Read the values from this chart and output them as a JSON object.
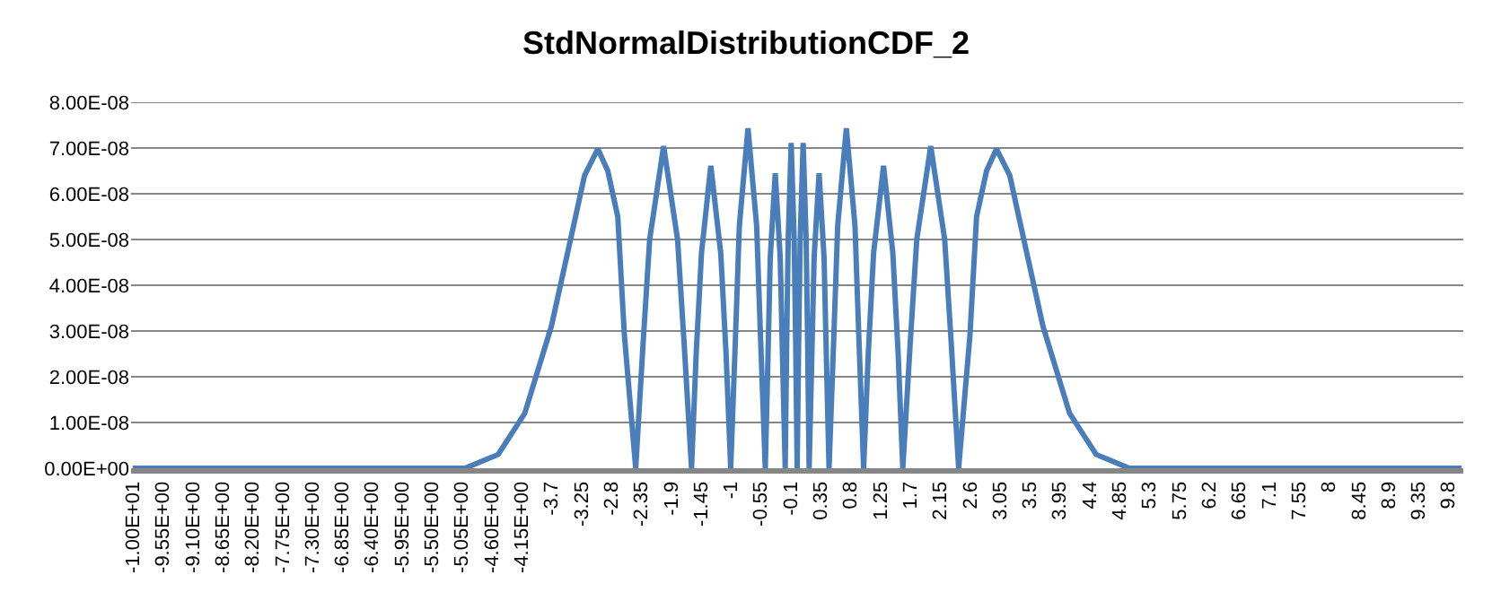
{
  "chart_data": {
    "type": "line",
    "title": "StdNormalDistributionCDF_2",
    "series": [
      {
        "color": "#4a7ebb",
        "x": [
          -10,
          -5.3,
          -5.0,
          -4.5,
          -4.1,
          -3.7,
          -3.35,
          -3.2,
          -3.0,
          -2.85,
          -2.7,
          -2.6,
          -2.43,
          -2.32,
          -2.22,
          -2.01,
          -1.8,
          -1.7,
          -1.59,
          -1.52,
          -1.44,
          -1.3,
          -1.15,
          -1.07,
          -1.0,
          -0.93,
          -0.87,
          -0.74,
          -0.61,
          -0.55,
          -0.48,
          -0.44,
          -0.405,
          -0.33,
          -0.255,
          -0.22,
          -0.18,
          -0.158,
          -0.135,
          -0.09,
          -0.045,
          -0.022,
          0,
          0.022,
          0.045,
          0.09,
          0.135,
          0.158,
          0.18,
          0.22,
          0.255,
          0.33,
          0.405,
          0.44,
          0.48,
          0.55,
          0.61,
          0.74,
          0.87,
          0.93,
          1.0,
          1.07,
          1.15,
          1.3,
          1.44,
          1.52,
          1.59,
          1.7,
          1.8,
          2.01,
          2.22,
          2.32,
          2.43,
          2.6,
          2.7,
          2.85,
          3.0,
          3.2,
          3.35,
          3.7,
          4.1,
          4.5,
          5.0,
          5.3,
          10
        ],
        "values": [
          0,
          0,
          0,
          3e-09,
          1.2e-08,
          3.1e-08,
          5.4e-08,
          6.4e-08,
          6.98e-08,
          6.5e-08,
          5.5e-08,
          2.9e-08,
          0,
          2.7e-08,
          5e-08,
          7.04e-08,
          5e-08,
          2.7e-08,
          0,
          2.5e-08,
          4.7e-08,
          6.61e-08,
          4.7e-08,
          2.5e-08,
          0,
          2.8e-08,
          5.3e-08,
          7.43e-08,
          5.3e-08,
          2.8e-08,
          0,
          2.4e-08,
          4.6e-08,
          6.45e-08,
          4.6e-08,
          2.4e-08,
          0,
          2.7e-08,
          5e-08,
          7.11e-08,
          5e-08,
          2.7e-08,
          0,
          2.7e-08,
          5e-08,
          7.11e-08,
          5e-08,
          2.7e-08,
          0,
          2.4e-08,
          4.6e-08,
          6.45e-08,
          4.6e-08,
          2.4e-08,
          0,
          2.8e-08,
          5.3e-08,
          7.43e-08,
          5.3e-08,
          2.8e-08,
          0,
          2.5e-08,
          4.7e-08,
          6.61e-08,
          4.7e-08,
          2.5e-08,
          0,
          2.7e-08,
          5e-08,
          7.04e-08,
          5e-08,
          2.7e-08,
          0,
          2.9e-08,
          5.5e-08,
          6.5e-08,
          6.98e-08,
          6.4e-08,
          5.4e-08,
          3.1e-08,
          1.2e-08,
          3e-09,
          0,
          0,
          0
        ]
      }
    ],
    "xlim": [
      -10.025,
      10.025
    ],
    "xticks": [
      {
        "value": -10,
        "label": "-1.00E+01"
      },
      {
        "value": -9.55,
        "label": "-9.55E+00"
      },
      {
        "value": -9.1,
        "label": "-9.10E+00"
      },
      {
        "value": -8.65,
        "label": "-8.65E+00"
      },
      {
        "value": -8.2,
        "label": "-8.20E+00"
      },
      {
        "value": -7.75,
        "label": "-7.75E+00"
      },
      {
        "value": -7.3,
        "label": "-7.30E+00"
      },
      {
        "value": -6.85,
        "label": "-6.85E+00"
      },
      {
        "value": -6.4,
        "label": "-6.40E+00"
      },
      {
        "value": -5.95,
        "label": "-5.95E+00"
      },
      {
        "value": -5.5,
        "label": "-5.50E+00"
      },
      {
        "value": -5.05,
        "label": "-5.05E+00"
      },
      {
        "value": -4.6,
        "label": "-4.60E+00"
      },
      {
        "value": -4.15,
        "label": "-4.15E+00"
      },
      -3.7,
      -3.25,
      -2.8,
      -2.35,
      -1.9,
      -1.45,
      -1,
      -0.55,
      -0.1,
      0.35,
      0.8,
      1.25,
      1.7,
      2.15,
      2.6,
      3.05,
      3.5,
      3.95,
      4.4,
      4.85,
      5.3,
      5.75,
      6.2,
      6.65,
      7.1,
      7.55,
      8,
      8.45,
      8.9,
      9.35,
      9.8
    ],
    "ylim": [
      0,
      8e-08
    ],
    "yticks": [
      {
        "value": 0,
        "label": "0.00E+00"
      },
      {
        "value": 1e-08,
        "label": "1.00E-08"
      },
      {
        "value": 2e-08,
        "label": "2.00E-08"
      },
      {
        "value": 3e-08,
        "label": "3.00E-08"
      },
      {
        "value": 4e-08,
        "label": "4.00E-08"
      },
      {
        "value": 5e-08,
        "label": "5.00E-08"
      },
      {
        "value": 6e-08,
        "label": "6.00E-08"
      },
      {
        "value": 7e-08,
        "label": "7.00E-08"
      },
      {
        "value": 8e-08,
        "label": "8.00E-08"
      }
    ],
    "grid": "y"
  }
}
